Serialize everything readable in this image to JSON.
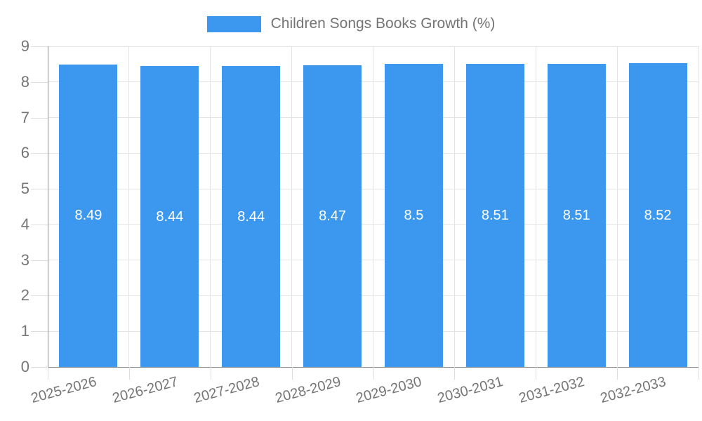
{
  "legend": {
    "label": "Children Songs Books Growth (%)"
  },
  "chart_data": {
    "type": "bar",
    "title": "Children Songs Books Growth (%)",
    "categories": [
      "2025-2026",
      "2026-2027",
      "2027-2028",
      "2028-2029",
      "2029-2030",
      "2030-2031",
      "2031-2032",
      "2032-2033"
    ],
    "values": [
      8.49,
      8.44,
      8.44,
      8.47,
      8.5,
      8.51,
      8.51,
      8.52
    ],
    "value_labels": [
      "8.49",
      "8.44",
      "8.44",
      "8.47",
      "8.5",
      "8.51",
      "8.51",
      "8.52"
    ],
    "xlabel": "",
    "ylabel": "",
    "ylim": [
      0,
      9
    ],
    "yticks": [
      0,
      1,
      2,
      3,
      4,
      5,
      6,
      7,
      8,
      9
    ],
    "grid": true,
    "legend_position": "top",
    "bar_color": "#3b98ee",
    "value_label_color": "#ffffff"
  },
  "colors": {
    "background": "#ffffff",
    "bar": "#3b98ee",
    "axis_line": "#8f8f8f",
    "gridline": "#e4e4e4",
    "tick": "#dedede",
    "text": "#757575",
    "value_text": "#ffffff"
  }
}
